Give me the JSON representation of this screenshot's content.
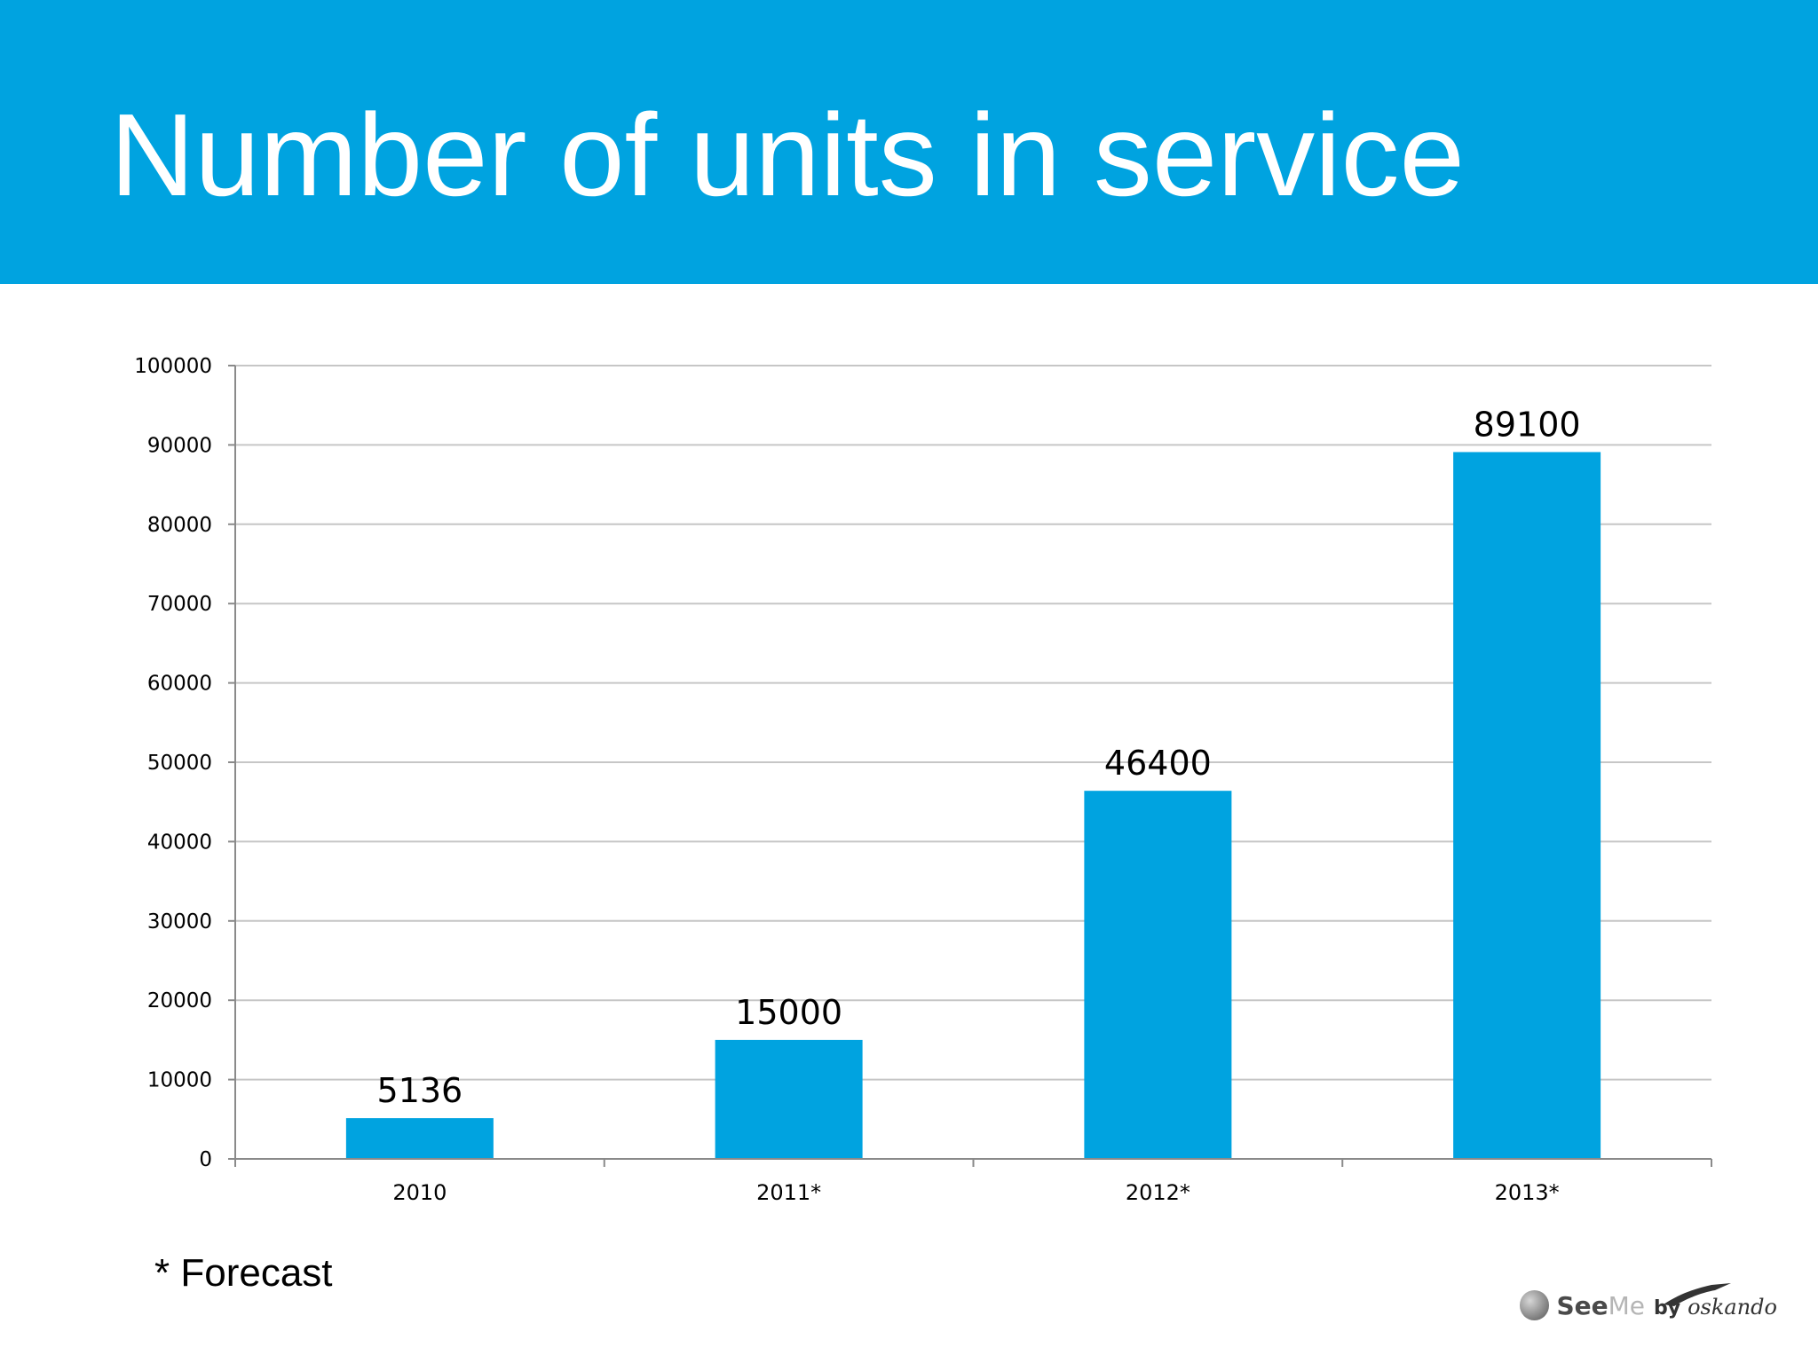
{
  "slide": {
    "title": "Number of units in service",
    "footnote": "* Forecast"
  },
  "logo": {
    "see": "See",
    "me": "Me",
    "by": "by",
    "brand": "oskando"
  },
  "colors": {
    "header": "#00a3e0",
    "bar": "#00a3e0",
    "grid": "#c6c6c6",
    "axis": "#8a8a8a"
  },
  "chart_data": {
    "type": "bar",
    "title": "",
    "xlabel": "",
    "ylabel": "",
    "categories": [
      "2010",
      "2011*",
      "2012*",
      "2013*"
    ],
    "values": [
      5136,
      15000,
      46400,
      89100
    ],
    "value_labels": [
      "5136",
      "15000",
      "46400",
      "89100"
    ],
    "ylim": [
      0,
      100000
    ],
    "yticks": [
      0,
      10000,
      20000,
      30000,
      40000,
      50000,
      60000,
      70000,
      80000,
      90000,
      100000
    ],
    "ytick_labels": [
      "0",
      "10000",
      "20000",
      "30000",
      "40000",
      "50000",
      "60000",
      "70000",
      "80000",
      "90000",
      "100000"
    ],
    "grid": true,
    "legend": false
  }
}
